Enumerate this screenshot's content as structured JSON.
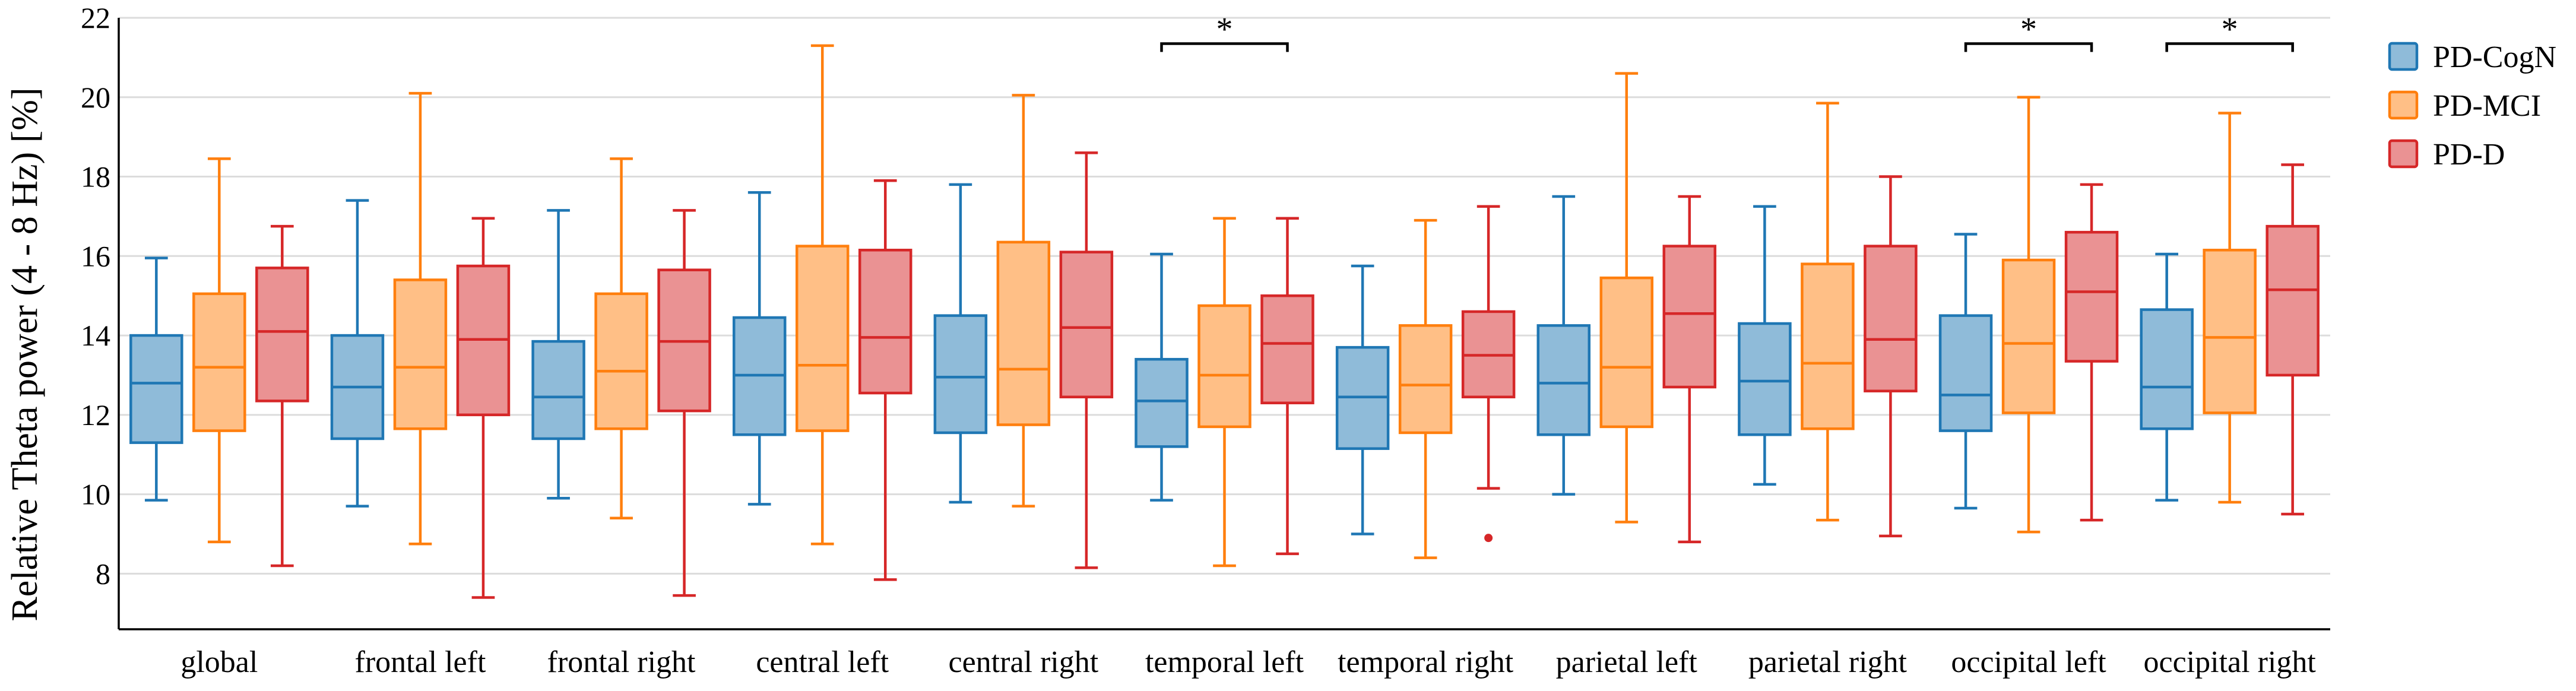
{
  "chart_data": {
    "type": "box",
    "title": "",
    "xlabel": "",
    "ylabel": "Relative Theta power (4 - 8 Hz) [%]",
    "ylim": [
      6.6,
      22
    ],
    "yticks": [
      8,
      10,
      12,
      14,
      16,
      18,
      20,
      22
    ],
    "grid": true,
    "legend_position": "top-right",
    "categories": [
      "global",
      "frontal left",
      "frontal right",
      "central left",
      "central right",
      "temporal left",
      "temporal right",
      "parietal left",
      "parietal right",
      "occipital left",
      "occipital right"
    ],
    "series": [
      {
        "name": "PD-CogN",
        "color": "#1f77b4",
        "fill": "#8fbbd9",
        "boxes": [
          {
            "min": 9.85,
            "q1": 11.3,
            "median": 12.8,
            "q3": 14.0,
            "max": 15.95,
            "outliers": []
          },
          {
            "min": 9.7,
            "q1": 11.4,
            "median": 12.7,
            "q3": 14.0,
            "max": 17.4,
            "outliers": []
          },
          {
            "min": 9.9,
            "q1": 11.4,
            "median": 12.45,
            "q3": 13.85,
            "max": 17.15,
            "outliers": []
          },
          {
            "min": 9.75,
            "q1": 11.5,
            "median": 13.0,
            "q3": 14.45,
            "max": 17.6,
            "outliers": []
          },
          {
            "min": 9.8,
            "q1": 11.55,
            "median": 12.95,
            "q3": 14.5,
            "max": 17.8,
            "outliers": []
          },
          {
            "min": 9.85,
            "q1": 11.2,
            "median": 12.35,
            "q3": 13.4,
            "max": 16.05,
            "outliers": []
          },
          {
            "min": 9.0,
            "q1": 11.15,
            "median": 12.45,
            "q3": 13.7,
            "max": 15.75,
            "outliers": []
          },
          {
            "min": 10.0,
            "q1": 11.5,
            "median": 12.8,
            "q3": 14.25,
            "max": 17.5,
            "outliers": []
          },
          {
            "min": 10.25,
            "q1": 11.5,
            "median": 12.85,
            "q3": 14.3,
            "max": 17.25,
            "outliers": []
          },
          {
            "min": 9.65,
            "q1": 11.6,
            "median": 12.5,
            "q3": 14.5,
            "max": 16.55,
            "outliers": []
          },
          {
            "min": 9.85,
            "q1": 11.65,
            "median": 12.7,
            "q3": 14.65,
            "max": 16.05,
            "outliers": []
          }
        ]
      },
      {
        "name": "PD-MCI",
        "color": "#ff7f0e",
        "fill": "#ffbf86",
        "boxes": [
          {
            "min": 8.8,
            "q1": 11.6,
            "median": 13.2,
            "q3": 15.05,
            "max": 18.45,
            "outliers": []
          },
          {
            "min": 8.75,
            "q1": 11.65,
            "median": 13.2,
            "q3": 15.4,
            "max": 20.1,
            "outliers": []
          },
          {
            "min": 9.4,
            "q1": 11.65,
            "median": 13.1,
            "q3": 15.05,
            "max": 18.45,
            "outliers": []
          },
          {
            "min": 8.75,
            "q1": 11.6,
            "median": 13.25,
            "q3": 16.25,
            "max": 21.3,
            "outliers": []
          },
          {
            "min": 9.7,
            "q1": 11.75,
            "median": 13.15,
            "q3": 16.35,
            "max": 20.05,
            "outliers": []
          },
          {
            "min": 8.2,
            "q1": 11.7,
            "median": 13.0,
            "q3": 14.75,
            "max": 16.95,
            "outliers": []
          },
          {
            "min": 8.4,
            "q1": 11.55,
            "median": 12.75,
            "q3": 14.25,
            "max": 16.9,
            "outliers": []
          },
          {
            "min": 9.3,
            "q1": 11.7,
            "median": 13.2,
            "q3": 15.45,
            "max": 20.6,
            "outliers": []
          },
          {
            "min": 9.35,
            "q1": 11.65,
            "median": 13.3,
            "q3": 15.8,
            "max": 19.85,
            "outliers": []
          },
          {
            "min": 9.05,
            "q1": 12.05,
            "median": 13.8,
            "q3": 15.9,
            "max": 20.0,
            "outliers": []
          },
          {
            "min": 9.8,
            "q1": 12.05,
            "median": 13.95,
            "q3": 16.15,
            "max": 19.6,
            "outliers": []
          }
        ]
      },
      {
        "name": "PD-D",
        "color": "#d62728",
        "fill": "#ea9293",
        "boxes": [
          {
            "min": 8.2,
            "q1": 12.35,
            "median": 14.1,
            "q3": 15.7,
            "max": 16.75,
            "outliers": []
          },
          {
            "min": 7.4,
            "q1": 12.0,
            "median": 13.9,
            "q3": 15.75,
            "max": 16.95,
            "outliers": []
          },
          {
            "min": 7.45,
            "q1": 12.1,
            "median": 13.85,
            "q3": 15.65,
            "max": 17.15,
            "outliers": []
          },
          {
            "min": 7.85,
            "q1": 12.55,
            "median": 13.95,
            "q3": 16.15,
            "max": 17.9,
            "outliers": []
          },
          {
            "min": 8.15,
            "q1": 12.45,
            "median": 14.2,
            "q3": 16.1,
            "max": 18.6,
            "outliers": []
          },
          {
            "min": 8.5,
            "q1": 12.3,
            "median": 13.8,
            "q3": 15.0,
            "max": 16.95,
            "outliers": []
          },
          {
            "min": 10.15,
            "q1": 12.45,
            "median": 13.5,
            "q3": 14.6,
            "max": 17.25,
            "outliers": [
              8.9
            ]
          },
          {
            "min": 8.8,
            "q1": 12.7,
            "median": 14.55,
            "q3": 16.25,
            "max": 17.5,
            "outliers": []
          },
          {
            "min": 8.95,
            "q1": 12.6,
            "median": 13.9,
            "q3": 16.25,
            "max": 18.0,
            "outliers": []
          },
          {
            "min": 9.35,
            "q1": 13.35,
            "median": 15.1,
            "q3": 16.6,
            "max": 17.8,
            "outliers": []
          },
          {
            "min": 9.5,
            "q1": 13.0,
            "median": 15.15,
            "q3": 16.75,
            "max": 18.3,
            "outliers": []
          }
        ]
      }
    ],
    "annotations": [
      {
        "category": "temporal left",
        "text": "*",
        "from_series": "PD-CogN",
        "to_series": "PD-D",
        "level": 21.35
      },
      {
        "category": "occipital left",
        "text": "*",
        "from_series": "PD-CogN",
        "to_series": "PD-D",
        "level": 21.35
      },
      {
        "category": "occipital right",
        "text": "*",
        "from_series": "PD-CogN",
        "to_series": "PD-D",
        "level": 21.35
      }
    ]
  }
}
